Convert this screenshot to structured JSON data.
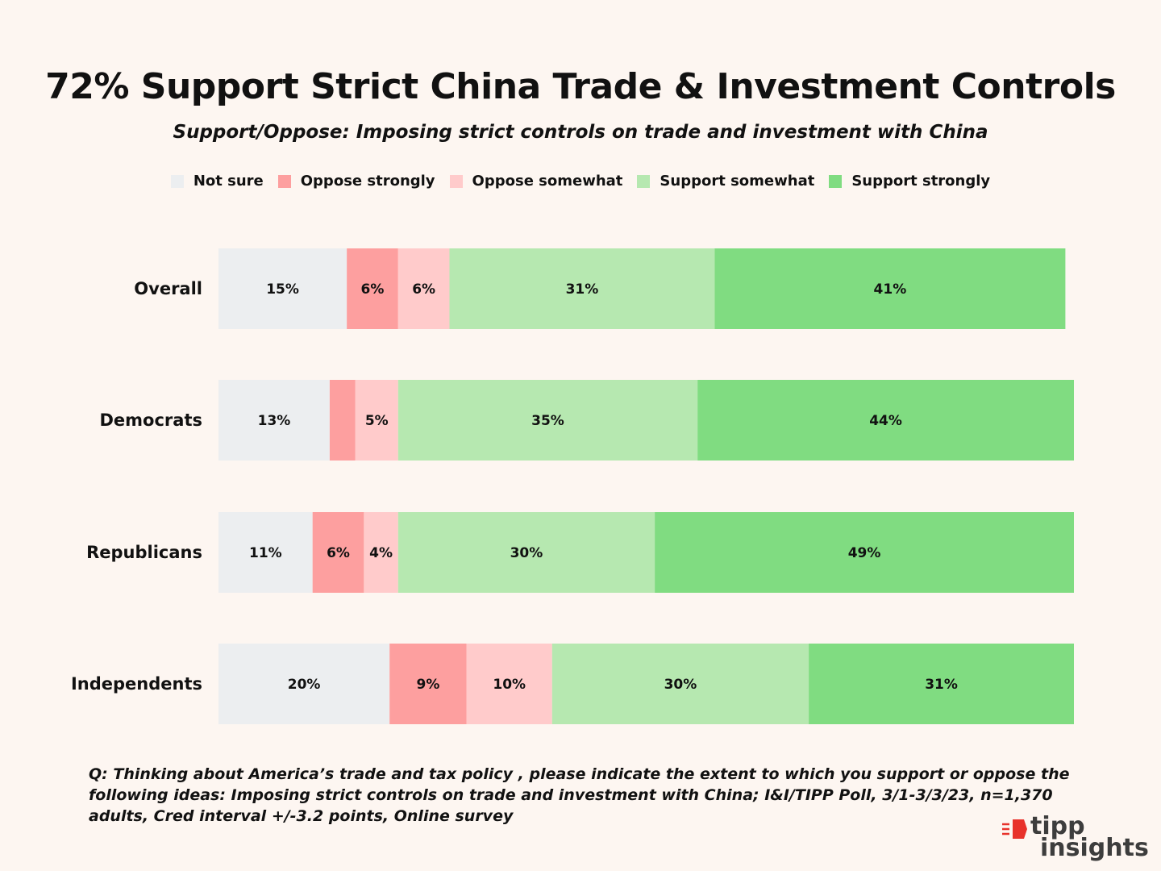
{
  "chart_data": {
    "type": "bar",
    "orientation": "horizontal",
    "stacked": true,
    "title": "72% Support Strict China Trade & Investment Controls",
    "subtitle": "Support/Oppose:  Imposing strict controls on trade and investment with China",
    "categories": [
      "Overall",
      "Democrats",
      "Republicans",
      "Independents"
    ],
    "series": [
      {
        "name": "Not sure",
        "color": "#eceef0",
        "values": [
          15,
          13,
          11,
          20
        ],
        "labels": [
          "15%",
          "13%",
          "11%",
          "20%"
        ]
      },
      {
        "name": "Oppose strongly",
        "color": "#fd9f9f",
        "values": [
          6,
          3,
          6,
          9
        ],
        "labels": [
          "6%",
          "",
          "6%",
          "9%"
        ]
      },
      {
        "name": "Oppose somewhat",
        "color": "#ffcbcb",
        "values": [
          6,
          5,
          4,
          10
        ],
        "labels": [
          "6%",
          "5%",
          "4%",
          "10%"
        ]
      },
      {
        "name": "Support somewhat",
        "color": "#b6e8b0",
        "values": [
          31,
          35,
          30,
          30
        ],
        "labels": [
          "31%",
          "35%",
          "30%",
          "30%"
        ]
      },
      {
        "name": "Support strongly",
        "color": "#80dc81",
        "values": [
          41,
          44,
          49,
          31
        ],
        "labels": [
          "41%",
          "44%",
          "49%",
          "31%"
        ]
      }
    ],
    "xlim": [
      0,
      100
    ],
    "legend": "top-center",
    "grid": false
  },
  "footnote": "Q:  Thinking about America’s trade and tax policy , please indicate the extent to which you support or oppose the following ideas:  Imposing strict controls on trade and investment with China; I&I/TIPP Poll, 3/1-3/3/23, n=1,370 adults, Cred interval +/-3.2 points, Online survey",
  "logo": {
    "line1": "tipp",
    "line2": "insights",
    "accent_color": "#e8322b"
  }
}
